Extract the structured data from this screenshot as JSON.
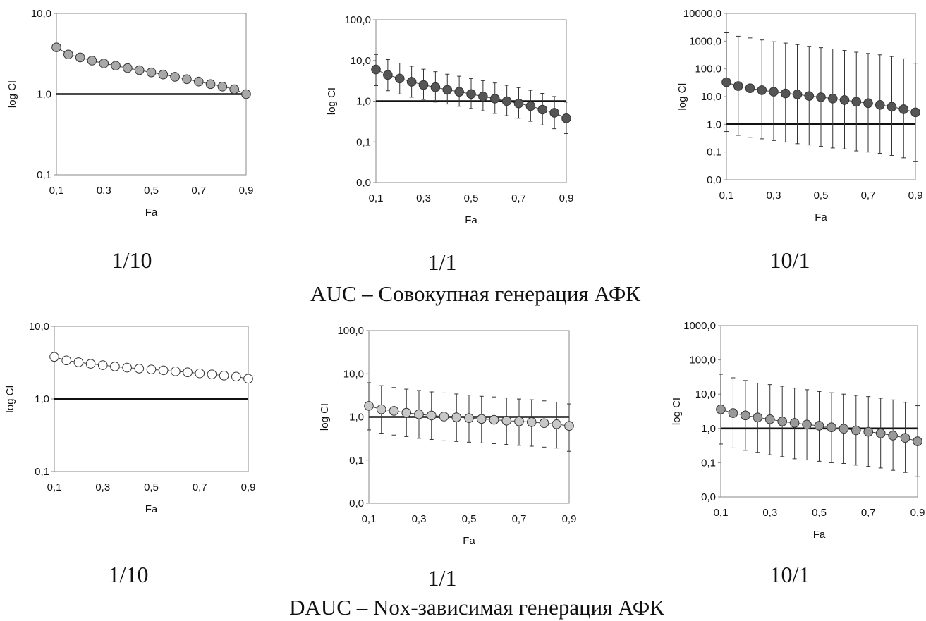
{
  "group_titles": [
    "AUC – Совокупная генерация АФК",
    "DAUC – Nox-зависимая генерация АФК"
  ],
  "chart_data": [
    {
      "type": "scatter",
      "caption": "1/10",
      "xlabel": "Fa",
      "ylabel": "log CI",
      "xlim": [
        0.1,
        0.9
      ],
      "xticks": [
        "0,1",
        "0,3",
        "0,5",
        "0,7",
        "0,9"
      ],
      "yscale": "log",
      "ylim": [
        0.1,
        10
      ],
      "yticks": [
        {
          "v": 0.1,
          "label": "0,1"
        },
        {
          "v": 1,
          "label": "1,0"
        },
        {
          "v": 10,
          "label": "10,0"
        }
      ],
      "reference_line": 1.0,
      "marker_color": "#a8a8a8",
      "connect": true,
      "x": [
        0.1,
        0.15,
        0.2,
        0.25,
        0.3,
        0.35,
        0.4,
        0.45,
        0.5,
        0.55,
        0.6,
        0.65,
        0.7,
        0.75,
        0.8,
        0.85,
        0.9
      ],
      "y": [
        3.8,
        3.1,
        2.85,
        2.6,
        2.4,
        2.25,
        2.1,
        1.98,
        1.86,
        1.75,
        1.64,
        1.53,
        1.43,
        1.33,
        1.24,
        1.15,
        1.0
      ],
      "err_low": null,
      "err_high": null
    },
    {
      "type": "scatter",
      "caption": "1/1",
      "xlabel": "Fa",
      "ylabel": "log CI",
      "xlim": [
        0.1,
        0.9
      ],
      "xticks": [
        "0,1",
        "0,3",
        "0,5",
        "0,7",
        "0,9"
      ],
      "yscale": "log",
      "ylim": [
        0.01,
        100
      ],
      "yticks": [
        {
          "v": 0.01,
          "label": "0,0"
        },
        {
          "v": 0.1,
          "label": "0,1"
        },
        {
          "v": 1,
          "label": "1,0"
        },
        {
          "v": 10,
          "label": "10,0"
        },
        {
          "v": 100,
          "label": "100,0"
        }
      ],
      "reference_line": 1.0,
      "marker_color": "#555555",
      "connect": true,
      "x": [
        0.1,
        0.15,
        0.2,
        0.25,
        0.3,
        0.35,
        0.4,
        0.45,
        0.5,
        0.55,
        0.6,
        0.65,
        0.7,
        0.75,
        0.8,
        0.85,
        0.9
      ],
      "y": [
        6.0,
        4.4,
        3.6,
        3.0,
        2.5,
        2.2,
        1.9,
        1.7,
        1.5,
        1.3,
        1.15,
        1.0,
        0.88,
        0.76,
        0.62,
        0.52,
        0.38
      ],
      "err_low": [
        2.4,
        1.8,
        1.5,
        1.25,
        1.1,
        0.95,
        0.85,
        0.75,
        0.66,
        0.58,
        0.5,
        0.44,
        0.38,
        0.32,
        0.26,
        0.21,
        0.16
      ],
      "err_high": [
        14,
        10.5,
        8.6,
        7.2,
        6.1,
        5.3,
        4.6,
        4.1,
        3.6,
        3.2,
        2.8,
        2.45,
        2.15,
        1.85,
        1.55,
        1.3,
        0.95
      ]
    },
    {
      "type": "scatter",
      "caption": "10/1",
      "xlabel": "Fa",
      "ylabel": "log CI",
      "xlim": [
        0.1,
        0.9
      ],
      "xticks": [
        "0,1",
        "0,3",
        "0,5",
        "0,7",
        "0,9"
      ],
      "yscale": "log",
      "ylim": [
        0.01,
        10000
      ],
      "yticks": [
        {
          "v": 0.01,
          "label": "0,0"
        },
        {
          "v": 0.1,
          "label": "0,1"
        },
        {
          "v": 1,
          "label": "1,0"
        },
        {
          "v": 10,
          "label": "10,0"
        },
        {
          "v": 100,
          "label": "100,0"
        },
        {
          "v": 1000,
          "label": "1000,0"
        },
        {
          "v": 10000,
          "label": "10000,0"
        }
      ],
      "reference_line": 1.0,
      "marker_color": "#555555",
      "connect": true,
      "x": [
        0.1,
        0.15,
        0.2,
        0.25,
        0.3,
        0.35,
        0.4,
        0.45,
        0.5,
        0.55,
        0.6,
        0.65,
        0.7,
        0.75,
        0.8,
        0.85,
        0.9
      ],
      "y": [
        33,
        24,
        20,
        17,
        15,
        13,
        12,
        10.5,
        9.5,
        8.5,
        7.5,
        6.5,
        5.8,
        5,
        4.3,
        3.5,
        2.7
      ],
      "err_low": [
        0.55,
        0.4,
        0.34,
        0.3,
        0.26,
        0.23,
        0.2,
        0.18,
        0.16,
        0.14,
        0.13,
        0.11,
        0.1,
        0.09,
        0.075,
        0.062,
        0.045
      ],
      "err_high": [
        2000,
        1500,
        1300,
        1100,
        950,
        850,
        750,
        650,
        580,
        520,
        460,
        400,
        360,
        320,
        280,
        230,
        160
      ]
    },
    {
      "type": "scatter",
      "caption": "1/10",
      "xlabel": "Fa",
      "ylabel": "log CI",
      "xlim": [
        0.1,
        0.9
      ],
      "xticks": [
        "0,1",
        "0,3",
        "0,5",
        "0,7",
        "0,9"
      ],
      "yscale": "log",
      "ylim": [
        0.1,
        10
      ],
      "yticks": [
        {
          "v": 0.1,
          "label": "0,1"
        },
        {
          "v": 1,
          "label": "1,0"
        },
        {
          "v": 10,
          "label": "10,0"
        }
      ],
      "reference_line": 1.0,
      "marker_color": "#ffffff",
      "connect": true,
      "x": [
        0.1,
        0.15,
        0.2,
        0.25,
        0.3,
        0.35,
        0.4,
        0.45,
        0.5,
        0.55,
        0.6,
        0.65,
        0.7,
        0.75,
        0.8,
        0.85,
        0.9
      ],
      "y": [
        3.8,
        3.4,
        3.2,
        3.05,
        2.92,
        2.8,
        2.7,
        2.62,
        2.55,
        2.48,
        2.4,
        2.33,
        2.25,
        2.18,
        2.1,
        2.03,
        1.9
      ],
      "err_low": null,
      "err_high": null
    },
    {
      "type": "scatter",
      "caption": "1/1",
      "xlabel": "Fa",
      "ylabel": "log CI",
      "xlim": [
        0.1,
        0.9
      ],
      "xticks": [
        "0,1",
        "0,3",
        "0,5",
        "0,7",
        "0,9"
      ],
      "yscale": "log",
      "ylim": [
        0.01,
        100
      ],
      "yticks": [
        {
          "v": 0.01,
          "label": "0,0"
        },
        {
          "v": 0.1,
          "label": "0,1"
        },
        {
          "v": 1,
          "label": "1,0"
        },
        {
          "v": 10,
          "label": "10,0"
        },
        {
          "v": 100,
          "label": "100,0"
        }
      ],
      "reference_line": 1.0,
      "marker_color": "#c8c8c8",
      "connect": true,
      "x": [
        0.1,
        0.15,
        0.2,
        0.25,
        0.3,
        0.35,
        0.4,
        0.45,
        0.5,
        0.55,
        0.6,
        0.65,
        0.7,
        0.75,
        0.8,
        0.85,
        0.9
      ],
      "y": [
        1.8,
        1.5,
        1.38,
        1.25,
        1.15,
        1.08,
        1.02,
        0.98,
        0.94,
        0.9,
        0.86,
        0.82,
        0.79,
        0.76,
        0.72,
        0.68,
        0.62
      ],
      "err_low": [
        0.5,
        0.42,
        0.38,
        0.35,
        0.32,
        0.3,
        0.28,
        0.27,
        0.26,
        0.25,
        0.24,
        0.23,
        0.22,
        0.21,
        0.2,
        0.19,
        0.16
      ],
      "err_high": [
        6.2,
        5.3,
        4.8,
        4.4,
        4.1,
        3.8,
        3.6,
        3.4,
        3.2,
        3.0,
        2.9,
        2.75,
        2.6,
        2.5,
        2.35,
        2.2,
        2.0
      ]
    },
    {
      "type": "scatter",
      "caption": "10/1",
      "xlabel": "Fa",
      "ylabel": "log CI",
      "xlim": [
        0.1,
        0.9
      ],
      "xticks": [
        "0,1",
        "0,3",
        "0,5",
        "0,7",
        "0,9"
      ],
      "yscale": "log",
      "ylim": [
        0.01,
        1000
      ],
      "yticks": [
        {
          "v": 0.01,
          "label": "0,0"
        },
        {
          "v": 0.1,
          "label": "0,1"
        },
        {
          "v": 1,
          "label": "1,0"
        },
        {
          "v": 10,
          "label": "10,0"
        },
        {
          "v": 100,
          "label": "100,0"
        },
        {
          "v": 1000,
          "label": "1000,0"
        }
      ],
      "reference_line": 1.0,
      "marker_color": "#999999",
      "connect": true,
      "x": [
        0.1,
        0.15,
        0.2,
        0.25,
        0.3,
        0.35,
        0.4,
        0.45,
        0.5,
        0.55,
        0.6,
        0.65,
        0.7,
        0.75,
        0.8,
        0.85,
        0.9
      ],
      "y": [
        3.6,
        2.8,
        2.4,
        2.1,
        1.85,
        1.6,
        1.45,
        1.3,
        1.2,
        1.08,
        0.98,
        0.88,
        0.8,
        0.72,
        0.62,
        0.53,
        0.42
      ],
      "err_low": [
        0.35,
        0.27,
        0.23,
        0.2,
        0.17,
        0.15,
        0.13,
        0.12,
        0.11,
        0.1,
        0.095,
        0.085,
        0.078,
        0.07,
        0.06,
        0.052,
        0.04
      ],
      "err_high": [
        38,
        30,
        25,
        21,
        19,
        17,
        15,
        13.5,
        12,
        11,
        10,
        9.2,
        8.5,
        7.6,
        6.8,
        5.8,
        4.6
      ]
    }
  ]
}
